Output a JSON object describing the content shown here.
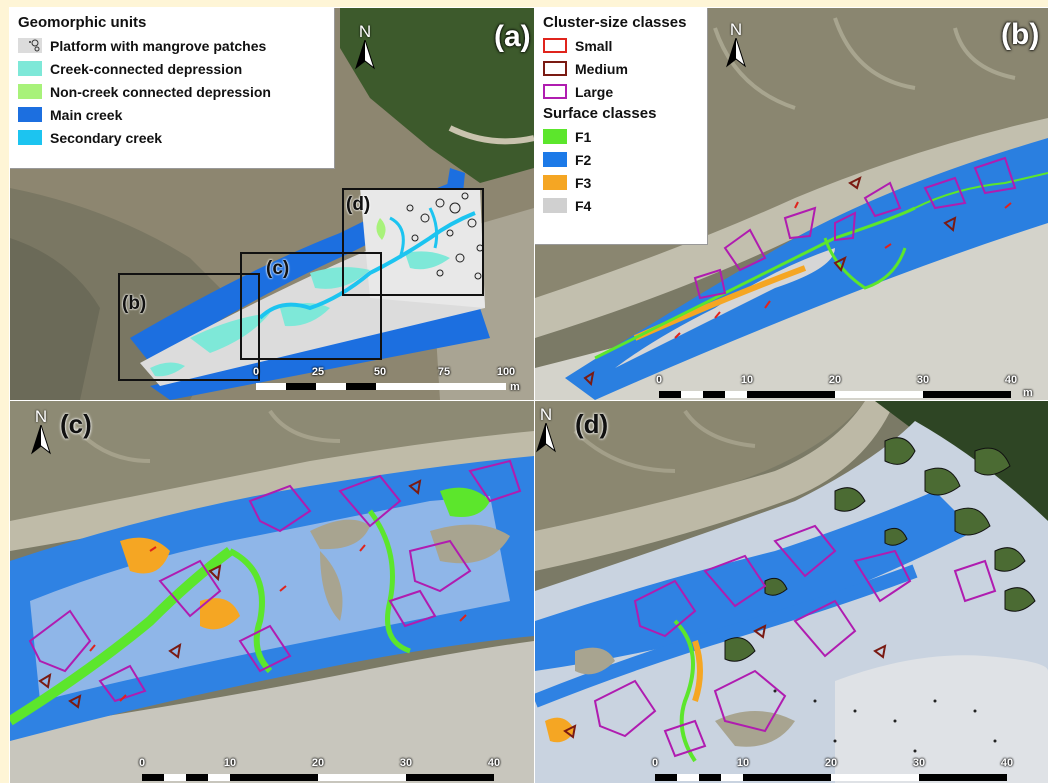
{
  "panels": {
    "a": {
      "label": "(a)",
      "north": "N"
    },
    "b": {
      "label": "(b)",
      "north": "N"
    },
    "c": {
      "label": "(c)",
      "north": "N"
    },
    "d": {
      "label": "(d)",
      "north": "N"
    }
  },
  "zoom_boxes": [
    {
      "label": "(b)"
    },
    {
      "label": "(c)"
    },
    {
      "label": "(d)"
    }
  ],
  "legend_geomorphic": {
    "title": "Geomorphic units",
    "items": [
      {
        "label": "Platform with mangrove patches",
        "color": "#dcdcdc"
      },
      {
        "label": "Creek-connected depression",
        "color": "#7ee8d8"
      },
      {
        "label": "Non-creek connected depression",
        "color": "#a8f27a"
      },
      {
        "label": "Main creek",
        "color": "#1c6fe0"
      },
      {
        "label": "Secondary creek",
        "color": "#1cc4f0"
      }
    ]
  },
  "legend_classes": {
    "cluster_title": "Cluster-size classes",
    "cluster_items": [
      {
        "label": "Small",
        "color": "#e0241c"
      },
      {
        "label": "Medium",
        "color": "#7a1a12"
      },
      {
        "label": "Large",
        "color": "#b01cb0"
      }
    ],
    "surface_title": "Surface classes",
    "surface_items": [
      {
        "label": "F1",
        "color": "#5ce62c"
      },
      {
        "label": "F2",
        "color": "#1c7ae8"
      },
      {
        "label": "F3",
        "color": "#f5a623"
      },
      {
        "label": "F4",
        "color": "#d0d0d0"
      }
    ]
  },
  "scales": {
    "a": {
      "ticks": [
        "0",
        "25",
        "50",
        "75",
        "100"
      ],
      "unit": "m"
    },
    "b": {
      "ticks": [
        "0",
        "10",
        "20",
        "30",
        "40"
      ],
      "unit": "m"
    },
    "c": {
      "ticks": [
        "0",
        "10",
        "20",
        "30",
        "40"
      ]
    },
    "d": {
      "ticks": [
        "0",
        "10",
        "20",
        "30",
        "40"
      ]
    }
  }
}
